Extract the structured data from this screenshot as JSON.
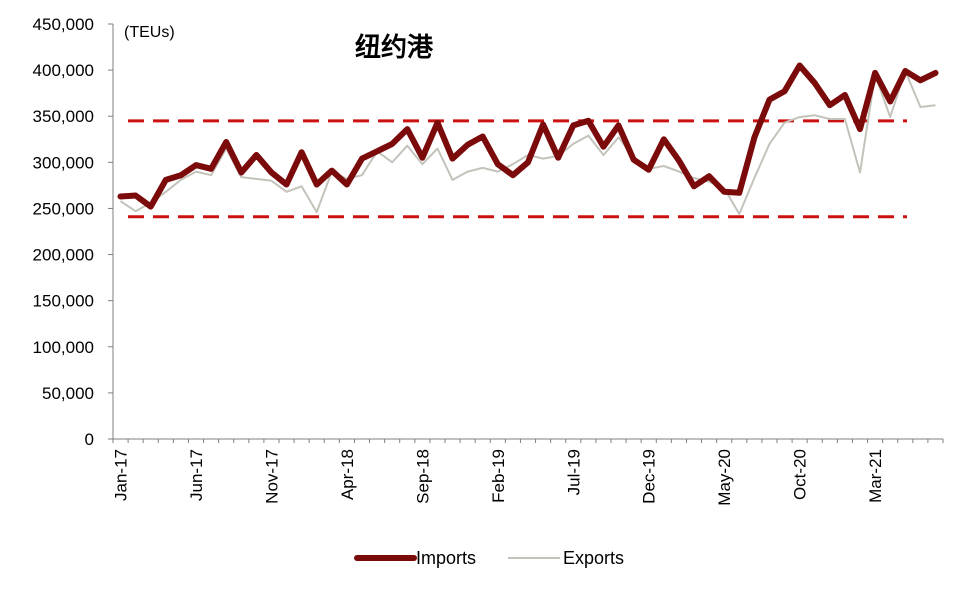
{
  "chart_data": {
    "type": "line",
    "title": "纽约港",
    "unit_label": "(TEUs)",
    "ylim": [
      0,
      450000
    ],
    "yticks": [
      0,
      50000,
      100000,
      150000,
      200000,
      250000,
      300000,
      350000,
      400000,
      450000
    ],
    "ytick_labels": [
      "0",
      "50,000",
      "100,000",
      "150,000",
      "200,000",
      "250,000",
      "300,000",
      "350,000",
      "400,000",
      "450,000"
    ],
    "x": [
      "2017-01",
      "2017-02",
      "2017-03",
      "2017-04",
      "2017-05",
      "2017-06",
      "2017-07",
      "2017-08",
      "2017-09",
      "2017-10",
      "2017-11",
      "2017-12",
      "2018-01",
      "2018-02",
      "2018-03",
      "2018-04",
      "2018-05",
      "2018-06",
      "2018-07",
      "2018-08",
      "2018-09",
      "2018-10",
      "2018-11",
      "2018-12",
      "2019-01",
      "2019-02",
      "2019-03",
      "2019-04",
      "2019-05",
      "2019-06",
      "2019-07",
      "2019-08",
      "2019-09",
      "2019-10",
      "2019-11",
      "2019-12",
      "2020-01",
      "2020-02",
      "2020-03",
      "2020-04",
      "2020-05",
      "2020-06",
      "2020-07",
      "2020-08",
      "2020-09",
      "2020-10",
      "2020-11",
      "2020-12",
      "2021-01",
      "2021-02",
      "2021-03",
      "2021-04",
      "2021-05",
      "2021-06",
      "2021-07"
    ],
    "xtick_labels": [
      "Jan-17",
      "Jun-17",
      "Nov-17",
      "Apr-18",
      "Sep-18",
      "Feb-19",
      "Jul-19",
      "Dec-19",
      "May-20",
      "Oct-20",
      "Mar-21"
    ],
    "xtick_index": [
      0,
      5,
      10,
      15,
      20,
      25,
      30,
      35,
      40,
      45,
      50
    ],
    "series": [
      {
        "name": "Imports",
        "color": "#7b0a0a",
        "values": [
          263000,
          264000,
          252000,
          281000,
          286000,
          297000,
          293000,
          322000,
          289000,
          308000,
          289000,
          276000,
          311000,
          276000,
          291000,
          276000,
          304000,
          312000,
          320000,
          336000,
          305000,
          343000,
          304000,
          319000,
          328000,
          298000,
          286000,
          300000,
          341000,
          305000,
          340000,
          345000,
          317000,
          340000,
          303000,
          292000,
          325000,
          302000,
          274000,
          285000,
          268000,
          267000,
          327000,
          368000,
          377000,
          405000,
          386000,
          362000,
          373000,
          336000,
          397000,
          366000,
          399000,
          389000,
          397000
        ]
      },
      {
        "name": "Exports",
        "color": "#c3c3bb",
        "values": [
          258000,
          247000,
          256000,
          268000,
          281000,
          290000,
          286000,
          315000,
          284000,
          282000,
          280000,
          268000,
          274000,
          246000,
          290000,
          282000,
          286000,
          312000,
          300000,
          318000,
          298000,
          315000,
          281000,
          290000,
          294000,
          290000,
          298000,
          308000,
          304000,
          307000,
          320000,
          329000,
          308000,
          327000,
          306000,
          293000,
          296000,
          290000,
          283000,
          279000,
          272000,
          244000,
          283000,
          320000,
          343000,
          349000,
          351000,
          347000,
          347000,
          289000,
          395000,
          349000,
          399000,
          360000,
          362000
        ]
      }
    ],
    "reference_lines": [
      {
        "value": 345000,
        "color": "#cc1111",
        "style": "dashed"
      },
      {
        "value": 241000,
        "color": "#cc1111",
        "style": "dashed"
      }
    ],
    "grid": false,
    "legend_position": "bottom"
  }
}
